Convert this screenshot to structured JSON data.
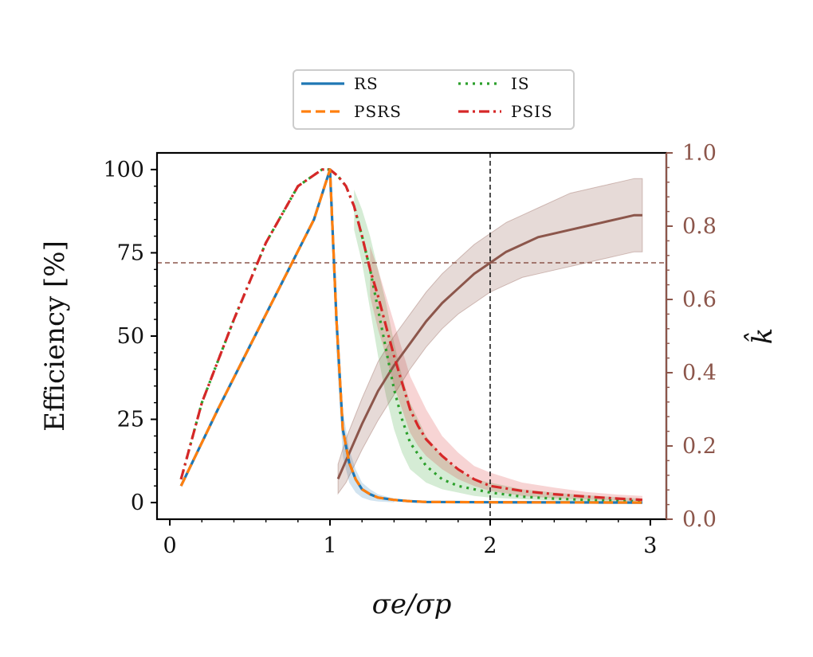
{
  "chart_data": {
    "type": "line",
    "title": "",
    "xlabel": "σe/σp",
    "ylabel": "Efficiency [%]",
    "y2label": "k̂",
    "xlim": [
      -0.08,
      3.1
    ],
    "ylim": [
      -5,
      105
    ],
    "y2lim": [
      0.0,
      1.0
    ],
    "xticks": [
      0,
      1,
      2,
      3
    ],
    "xtick_labels": [
      "0",
      "1",
      "2",
      "3"
    ],
    "yticks": [
      0,
      25,
      50,
      75,
      100
    ],
    "ytick_labels": [
      "0",
      "25",
      "50",
      "75",
      "100"
    ],
    "y2ticks": [
      0.0,
      0.2,
      0.4,
      0.6,
      0.8,
      1.0
    ],
    "y2tick_labels": [
      "0.0",
      "0.2",
      "0.4",
      "0.6",
      "0.8",
      "1.0"
    ],
    "hline_y2": 0.7,
    "vline_x": 2.0,
    "legend": {
      "placement": "top-center",
      "entries": [
        {
          "label": "RS",
          "color": "#1f77b4",
          "dash": "solid"
        },
        {
          "label": "IS",
          "color": "#2ca02c",
          "dash": "dotted"
        },
        {
          "label": "PSRS",
          "color": "#ff7f0e",
          "dash": "dashed"
        },
        {
          "label": "PSIS",
          "color": "#d62728",
          "dash": "dashdot"
        }
      ]
    },
    "series": [
      {
        "name": "RS",
        "color": "#1f77b4",
        "dash": "solid",
        "x": [
          0.07,
          0.3,
          0.5,
          0.7,
          0.9,
          1.0,
          1.04,
          1.08,
          1.12,
          1.16,
          1.2,
          1.25,
          1.3,
          1.4,
          1.5,
          1.6,
          2.0,
          2.5,
          2.95
        ],
        "y": [
          5,
          28,
          47,
          66,
          85,
          100,
          55,
          22,
          12,
          7,
          4,
          2.5,
          1.5,
          0.8,
          0.4,
          0.2,
          0.1,
          0.05,
          0.0
        ]
      },
      {
        "name": "PSRS",
        "color": "#ff7f0e",
        "dash": "dashed",
        "x": [
          0.07,
          0.3,
          0.5,
          0.7,
          0.9,
          1.0,
          1.04,
          1.08,
          1.12,
          1.16,
          1.2,
          1.25,
          1.3,
          1.4,
          1.5,
          1.6,
          2.0,
          2.5,
          2.95
        ],
        "y": [
          5,
          28,
          47,
          66,
          85,
          100,
          55,
          22,
          12,
          7,
          4,
          2.5,
          1.5,
          0.8,
          0.4,
          0.2,
          0.1,
          0.05,
          0.0
        ]
      },
      {
        "name": "IS",
        "color": "#2ca02c",
        "dash": "dotted",
        "x": [
          0.07,
          0.2,
          0.4,
          0.6,
          0.8,
          0.95,
          1.0,
          1.05,
          1.1,
          1.15,
          1.2,
          1.25,
          1.3,
          1.35,
          1.4,
          1.45,
          1.5,
          1.6,
          1.7,
          1.8,
          1.9,
          2.0,
          2.2,
          2.4,
          2.6,
          2.8,
          2.95
        ],
        "y": [
          7,
          30,
          55,
          78,
          95,
          100,
          100,
          98,
          95,
          89,
          80,
          70,
          58,
          46,
          34,
          25,
          18,
          11,
          7,
          5,
          4,
          3,
          1.8,
          1.2,
          0.8,
          0.5,
          0.4
        ]
      },
      {
        "name": "PSIS",
        "color": "#d62728",
        "dash": "dashdot",
        "x": [
          0.07,
          0.2,
          0.4,
          0.6,
          0.8,
          0.95,
          1.0,
          1.05,
          1.1,
          1.15,
          1.2,
          1.25,
          1.3,
          1.35,
          1.4,
          1.45,
          1.5,
          1.55,
          1.6,
          1.7,
          1.8,
          1.9,
          2.0,
          2.2,
          2.4,
          2.6,
          2.8,
          2.95
        ],
        "y": [
          7,
          30,
          55,
          78,
          95,
          100,
          100,
          98,
          95,
          89,
          80,
          70,
          62,
          53,
          44,
          36,
          28,
          23,
          19,
          14,
          10,
          7,
          5,
          3.5,
          2.5,
          1.8,
          1.2,
          0.8
        ]
      }
    ],
    "khat": {
      "name": "k̂",
      "color": "#8c564b",
      "axis": "right",
      "x": [
        1.05,
        1.1,
        1.2,
        1.3,
        1.4,
        1.5,
        1.6,
        1.7,
        1.8,
        1.9,
        2.0,
        2.1,
        2.2,
        2.3,
        2.4,
        2.5,
        2.6,
        2.7,
        2.8,
        2.9,
        2.95
      ],
      "y": [
        0.11,
        0.16,
        0.26,
        0.35,
        0.42,
        0.48,
        0.54,
        0.59,
        0.63,
        0.67,
        0.7,
        0.73,
        0.75,
        0.77,
        0.78,
        0.79,
        0.8,
        0.81,
        0.82,
        0.83,
        0.83
      ],
      "lower": [
        0.07,
        0.1,
        0.19,
        0.27,
        0.34,
        0.41,
        0.47,
        0.52,
        0.56,
        0.59,
        0.62,
        0.64,
        0.66,
        0.67,
        0.68,
        0.69,
        0.7,
        0.71,
        0.72,
        0.73,
        0.73
      ],
      "upper": [
        0.15,
        0.22,
        0.33,
        0.43,
        0.5,
        0.56,
        0.62,
        0.67,
        0.71,
        0.75,
        0.78,
        0.81,
        0.83,
        0.85,
        0.87,
        0.89,
        0.9,
        0.91,
        0.92,
        0.93,
        0.93
      ]
    },
    "bands": [
      {
        "name": "IS band",
        "color": "#2ca02c",
        "x": [
          1.15,
          1.2,
          1.25,
          1.3,
          1.35,
          1.4,
          1.45,
          1.5,
          1.6,
          1.7,
          1.8,
          1.9,
          2.0,
          2.2,
          2.4,
          2.6,
          2.8,
          2.95
        ],
        "lower": [
          82,
          72,
          58,
          44,
          32,
          22,
          15,
          10,
          6,
          4,
          3,
          2,
          1.5,
          1,
          0.6,
          0.4,
          0.2,
          0.1
        ],
        "upper": [
          94,
          88,
          80,
          70,
          60,
          48,
          38,
          30,
          20,
          14,
          10,
          7,
          6,
          4,
          3,
          2.2,
          1.6,
          1.2
        ]
      },
      {
        "name": "PSIS band",
        "color": "#d62728",
        "x": [
          1.25,
          1.3,
          1.35,
          1.4,
          1.45,
          1.5,
          1.55,
          1.6,
          1.7,
          1.8,
          1.9,
          2.0,
          2.2,
          2.4,
          2.6,
          2.8,
          2.95
        ],
        "lower": [
          62,
          52,
          44,
          35,
          28,
          21,
          17,
          14,
          10,
          7,
          5,
          3.5,
          2,
          1.3,
          0.9,
          0.6,
          0.4
        ],
        "upper": [
          77,
          70,
          62,
          54,
          46,
          38,
          33,
          28,
          20,
          15,
          11,
          9,
          6,
          4.5,
          3.2,
          2.4,
          2.0
        ]
      },
      {
        "name": "RS band",
        "color": "#1f77b4",
        "x": [
          1.04,
          1.08,
          1.12,
          1.16,
          1.2,
          1.25,
          1.3,
          1.4
        ],
        "lower": [
          45,
          14,
          6,
          3,
          1.5,
          0.7,
          0.3,
          0.1
        ],
        "upper": [
          62,
          28,
          16,
          10,
          6,
          4,
          2.5,
          1.2
        ]
      }
    ]
  }
}
